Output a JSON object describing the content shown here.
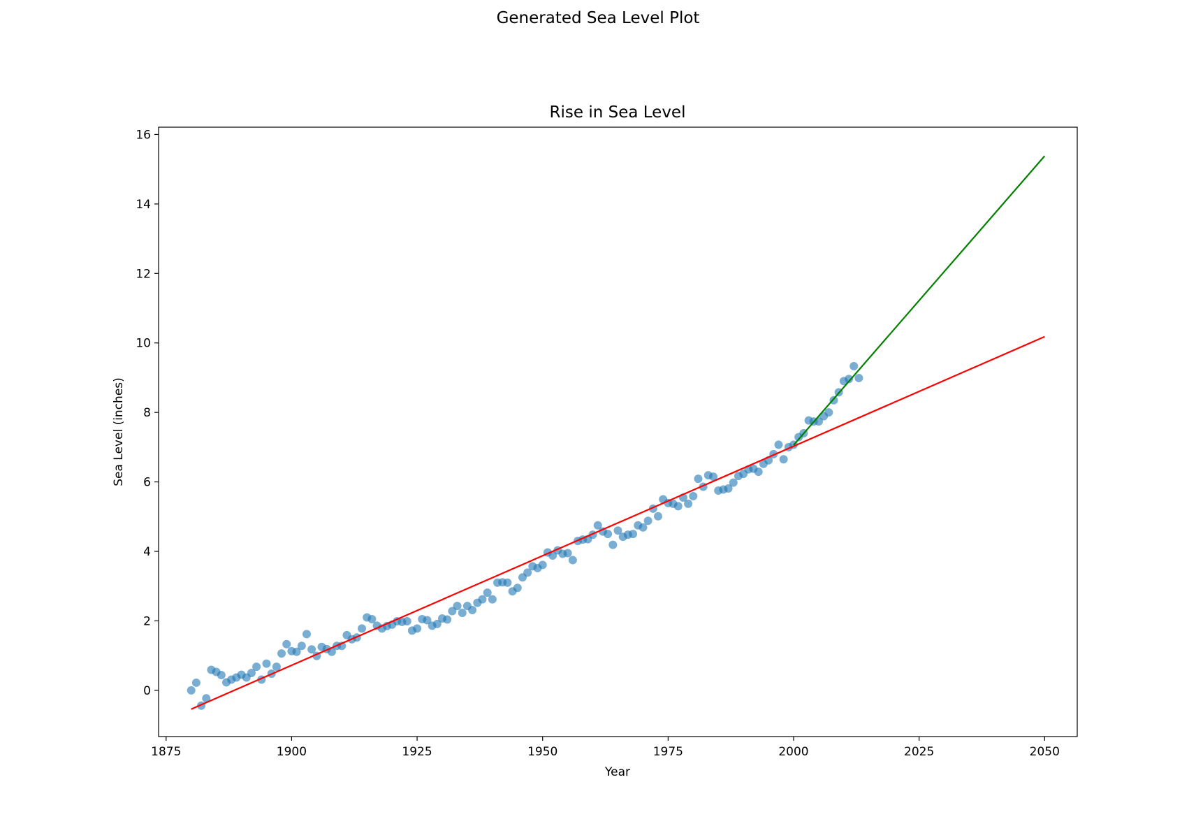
{
  "figure_title": "Generated Sea Level Plot",
  "chart_data": {
    "type": "scatter",
    "title": "Rise in Sea Level",
    "xlabel": "Year",
    "ylabel": "Sea Level (inches)",
    "xlim": [
      1873.5,
      2056.5
    ],
    "ylim": [
      -1.33,
      16.21
    ],
    "xticks": [
      1875,
      1900,
      1925,
      1950,
      1975,
      2000,
      2025,
      2050
    ],
    "yticks": [
      0,
      2,
      4,
      6,
      8,
      10,
      12,
      14,
      16
    ],
    "grid": false,
    "colors": {
      "points": "#1f77b4",
      "fit_all": "#ff0000",
      "fit_recent": "#008000"
    },
    "series": [
      {
        "kind": "scatter",
        "x": [
          1880,
          1881,
          1882,
          1883,
          1884,
          1885,
          1886,
          1887,
          1888,
          1889,
          1890,
          1891,
          1892,
          1893,
          1894,
          1895,
          1896,
          1897,
          1898,
          1899,
          1900,
          1901,
          1902,
          1903,
          1904,
          1905,
          1906,
          1907,
          1908,
          1909,
          1910,
          1911,
          1912,
          1913,
          1914,
          1915,
          1916,
          1917,
          1918,
          1919,
          1920,
          1921,
          1922,
          1923,
          1924,
          1925,
          1926,
          1927,
          1928,
          1929,
          1930,
          1931,
          1932,
          1933,
          1934,
          1935,
          1936,
          1937,
          1938,
          1939,
          1940,
          1941,
          1942,
          1943,
          1944,
          1945,
          1946,
          1947,
          1948,
          1949,
          1950,
          1951,
          1952,
          1953,
          1954,
          1955,
          1956,
          1957,
          1958,
          1959,
          1960,
          1961,
          1962,
          1963,
          1964,
          1965,
          1966,
          1967,
          1968,
          1969,
          1970,
          1971,
          1972,
          1973,
          1974,
          1975,
          1976,
          1977,
          1978,
          1979,
          1980,
          1981,
          1982,
          1983,
          1984,
          1985,
          1986,
          1987,
          1988,
          1989,
          1990,
          1991,
          1992,
          1993,
          1994,
          1995,
          1996,
          1997,
          1998,
          1999,
          2000,
          2001,
          2002,
          2003,
          2004,
          2005,
          2006,
          2007,
          2008,
          2009,
          2010,
          2011,
          2012,
          2013
        ],
        "y": [
          0.0,
          0.22,
          -0.44,
          -0.23,
          0.59,
          0.53,
          0.44,
          0.23,
          0.31,
          0.37,
          0.45,
          0.37,
          0.5,
          0.68,
          0.31,
          0.77,
          0.48,
          0.68,
          1.06,
          1.33,
          1.13,
          1.11,
          1.28,
          1.62,
          1.18,
          0.99,
          1.25,
          1.19,
          1.11,
          1.28,
          1.28,
          1.59,
          1.47,
          1.52,
          1.78,
          2.1,
          2.05,
          1.86,
          1.78,
          1.85,
          1.89,
          1.99,
          1.97,
          1.99,
          1.72,
          1.78,
          2.05,
          2.02,
          1.86,
          1.91,
          2.07,
          2.04,
          2.28,
          2.43,
          2.23,
          2.43,
          2.31,
          2.52,
          2.62,
          2.81,
          2.62,
          3.1,
          3.11,
          3.1,
          2.85,
          2.95,
          3.25,
          3.39,
          3.57,
          3.52,
          3.61,
          3.97,
          3.88,
          4.03,
          3.93,
          3.95,
          3.75,
          4.3,
          4.34,
          4.35,
          4.48,
          4.75,
          4.57,
          4.5,
          4.19,
          4.6,
          4.42,
          4.48,
          4.5,
          4.75,
          4.69,
          4.88,
          5.23,
          5.01,
          5.5,
          5.39,
          5.37,
          5.3,
          5.55,
          5.37,
          5.59,
          6.09,
          5.86,
          6.19,
          6.15,
          5.75,
          5.78,
          5.81,
          5.98,
          6.17,
          6.23,
          6.36,
          6.38,
          6.29,
          6.52,
          6.62,
          6.8,
          7.07,
          6.65,
          7.0,
          7.07,
          7.29,
          7.4,
          7.77,
          7.74,
          7.74,
          7.89,
          8.0,
          8.35,
          8.58,
          8.9,
          8.96,
          9.33,
          8.99
        ]
      },
      {
        "kind": "line",
        "x": [
          1880,
          2050
        ],
        "y": [
          -0.54,
          10.18
        ]
      },
      {
        "kind": "line",
        "x": [
          2000,
          2050
        ],
        "y": [
          7.06,
          15.38
        ]
      }
    ]
  }
}
